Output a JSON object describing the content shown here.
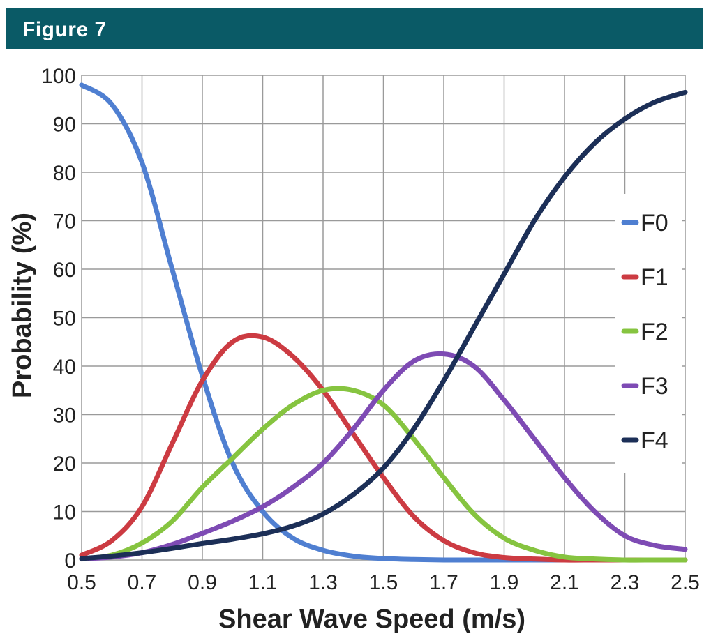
{
  "figure": {
    "label": "Figure 7"
  },
  "colors": {
    "banner": "#0a5a66",
    "grid": "#9a9a9a"
  },
  "chart_data": {
    "type": "line",
    "xlabel": "Shear Wave Speed (m/s)",
    "ylabel": "Probability (%)",
    "xlim": [
      0.5,
      2.5
    ],
    "ylim": [
      0,
      100
    ],
    "xticks": [
      "0.5",
      "0.7",
      "0.9",
      "1.1",
      "1.3",
      "1.5",
      "1.7",
      "1.9",
      "2.1",
      "2.3",
      "2.5"
    ],
    "yticks": [
      "0",
      "10",
      "20",
      "30",
      "40",
      "50",
      "60",
      "70",
      "80",
      "90",
      "100"
    ],
    "grid": true,
    "legend_position": "right",
    "x": [
      0.5,
      0.6,
      0.7,
      0.8,
      0.9,
      1.0,
      1.1,
      1.2,
      1.3,
      1.4,
      1.5,
      1.6,
      1.7,
      1.8,
      1.9,
      2.0,
      2.1,
      2.2,
      2.3,
      2.4,
      2.5
    ],
    "series": [
      {
        "name": "F0",
        "color": "#4f7fd1",
        "values": [
          98,
          94,
          82,
          60,
          38,
          20,
          10,
          4.5,
          2,
          0.8,
          0.3,
          0.1,
          0,
          0,
          0,
          0,
          0,
          0,
          0,
          0,
          0
        ]
      },
      {
        "name": "F1",
        "color": "#cc3b42",
        "values": [
          1,
          4,
          11,
          24,
          37,
          45,
          46,
          42,
          35,
          26,
          17,
          9,
          4,
          1.5,
          0.5,
          0.2,
          0,
          0,
          0,
          0,
          0
        ]
      },
      {
        "name": "F2",
        "color": "#86c440",
        "values": [
          0.2,
          1,
          3.5,
          8,
          15,
          21,
          27,
          32,
          35,
          35,
          32,
          25,
          17,
          9.5,
          4.5,
          2,
          0.6,
          0.2,
          0,
          0,
          0
        ]
      },
      {
        "name": "F3",
        "color": "#7e4bb4",
        "values": [
          0.2,
          0.6,
          1.5,
          3.2,
          5.5,
          8,
          11,
          15,
          20,
          27,
          35,
          41,
          42.5,
          40,
          33,
          25,
          17,
          10,
          5,
          3,
          2.2
        ]
      },
      {
        "name": "F4",
        "color": "#1c2f57",
        "values": [
          0.3,
          0.8,
          1.5,
          2.4,
          3.4,
          4.3,
          5.4,
          7,
          9.5,
          13.5,
          19,
          27,
          37,
          48,
          59,
          70,
          79,
          86,
          91,
          94.5,
          96.5
        ]
      }
    ]
  }
}
